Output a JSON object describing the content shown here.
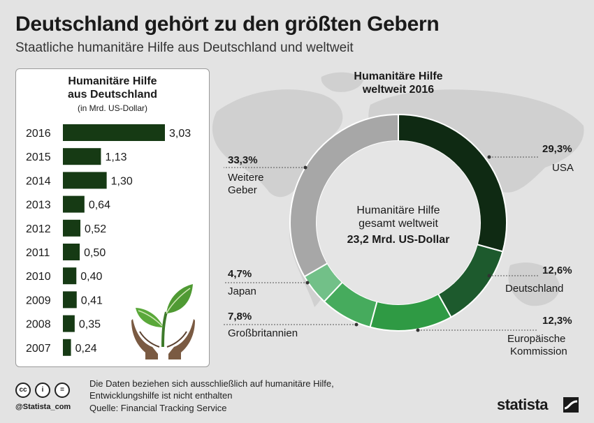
{
  "title": "Deutschland gehört zu den größten Gebern",
  "subtitle": "Staatliche humanitäre Hilfe aus Deutschland und weltweit",
  "chart_data": [
    {
      "type": "bar",
      "orientation": "horizontal",
      "title_line1": "Humanitäre Hilfe",
      "title_line2": "aus Deutschland",
      "unit": "(in Mrd. US-Dollar)",
      "categories": [
        "2016",
        "2015",
        "2014",
        "2013",
        "2012",
        "2011",
        "2010",
        "2009",
        "2008",
        "2007"
      ],
      "values": [
        3.03,
        1.13,
        1.3,
        0.64,
        0.52,
        0.5,
        0.4,
        0.41,
        0.35,
        0.24
      ],
      "value_labels": [
        "3,03",
        "1,13",
        "1,30",
        "0,64",
        "0,52",
        "0,50",
        "0,40",
        "0,41",
        "0,35",
        "0,24"
      ],
      "bar_color": "#163a14"
    },
    {
      "type": "pie",
      "variant": "donut",
      "title_line1": "Humanitäre Hilfe",
      "title_line2": "weltweit 2016",
      "center_line1": "Humanitäre Hilfe",
      "center_line2": "gesamt weltweit",
      "center_value": "23,2 Mrd. US-Dollar",
      "slices": [
        {
          "label": "USA",
          "value": 29.3,
          "value_label": "29,3%",
          "color": "#0f2a13"
        },
        {
          "label": "Deutschland",
          "value": 12.6,
          "value_label": "12,6%",
          "color": "#1d5a2d"
        },
        {
          "label": "Europäische Kommission",
          "label_line1": "Europäische",
          "label_line2": "Kommission",
          "value": 12.3,
          "value_label": "12,3%",
          "color": "#2f9a44"
        },
        {
          "label": "Großbritannien",
          "value": 7.8,
          "value_label": "7,8%",
          "color": "#46ab5d"
        },
        {
          "label": "Japan",
          "value": 4.7,
          "value_label": "4,7%",
          "color": "#72c088"
        },
        {
          "label": "Weitere Geber",
          "label_line1": "Weitere",
          "label_line2": "Geber",
          "value": 33.3,
          "value_label": "33,3%",
          "color": "#a7a7a7"
        }
      ]
    }
  ],
  "footer": {
    "note_line1": "Die Daten beziehen sich ausschließlich auf humanitäre Hilfe,",
    "note_line2": "Entwicklungshilfe ist nicht enthalten",
    "source": "Quelle: Financial Tracking Service",
    "handle": "@Statista_com",
    "license_icons": [
      "cc",
      "i",
      "="
    ],
    "brand": "statista"
  },
  "icons": [
    "plant-hands-icon",
    "world-map-icon",
    "statista-logo-icon"
  ]
}
